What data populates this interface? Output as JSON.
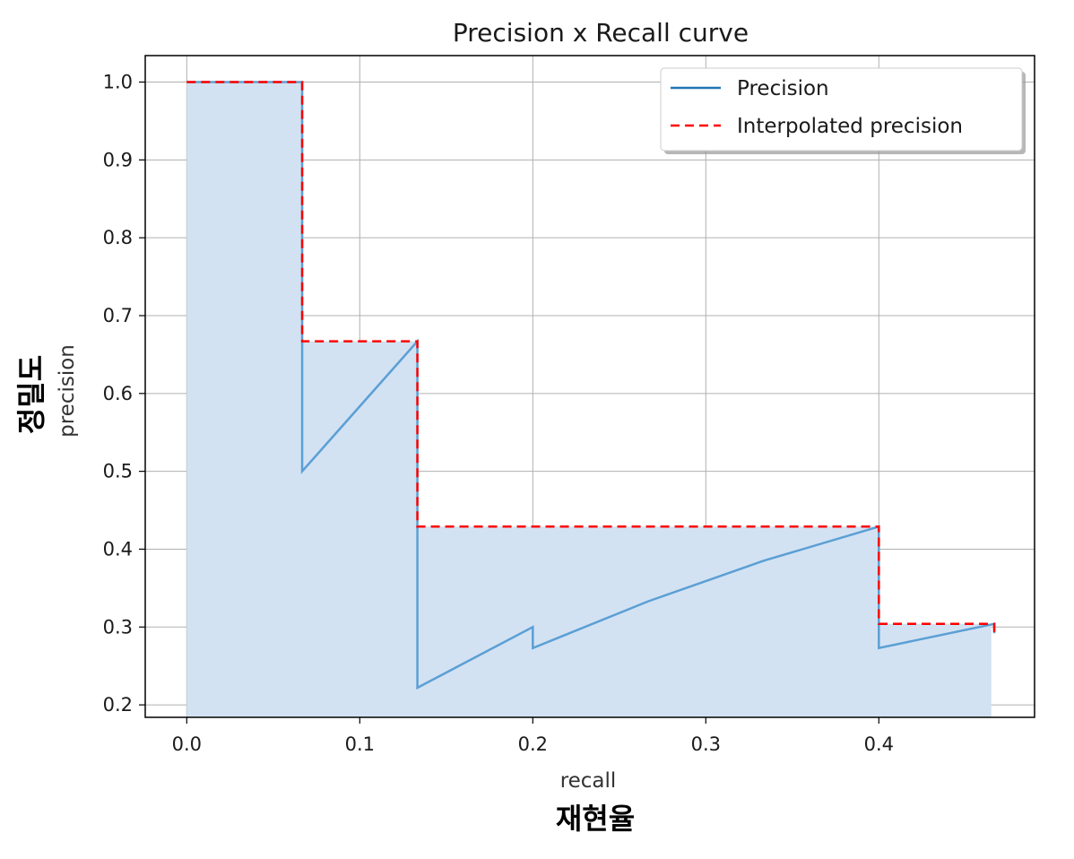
{
  "chart_data": {
    "type": "line",
    "title": "Precision x Recall curve",
    "xlabel": "recall",
    "ylabel": "precision",
    "xlabel_ko": "재현율",
    "ylabel_ko": "정밀도",
    "xlim": [
      -0.024,
      0.49
    ],
    "ylim": [
      0.184,
      1.034
    ],
    "xticks": [
      0.0,
      0.1,
      0.2,
      0.3,
      0.4
    ],
    "xtick_labels": [
      "0.0",
      "0.1",
      "0.2",
      "0.3",
      "0.4"
    ],
    "yticks": [
      0.2,
      0.3,
      0.4,
      0.5,
      0.6,
      0.7,
      0.8,
      0.9,
      1.0
    ],
    "ytick_labels": [
      "0.2",
      "0.3",
      "0.4",
      "0.5",
      "0.6",
      "0.7",
      "0.8",
      "0.9",
      "1.0"
    ],
    "grid": true,
    "legend_position": "top-right",
    "colors": {
      "precision": "#5b9fd4",
      "interpolated": "#ff0000",
      "fill": "#d2e2f3",
      "grid": "#b0b0b0"
    },
    "series": [
      {
        "name": "Precision",
        "style": "solid",
        "x": [
          0.0,
          0.0667,
          0.0667,
          0.1333,
          0.1333,
          0.2,
          0.2,
          0.2667,
          0.3333,
          0.4,
          0.4,
          0.4667,
          0.4667
        ],
        "y": [
          1.0,
          1.0,
          0.5,
          0.667,
          0.222,
          0.3,
          0.273,
          0.333,
          0.385,
          0.429,
          0.273,
          0.304,
          0.292
        ]
      },
      {
        "name": "Interpolated precision",
        "style": "dashed",
        "x": [
          0.0,
          0.0667,
          0.0667,
          0.1333,
          0.1333,
          0.4,
          0.4,
          0.4667,
          0.4667
        ],
        "y": [
          1.0,
          1.0,
          0.667,
          0.667,
          0.429,
          0.429,
          0.304,
          0.304,
          0.292
        ]
      }
    ],
    "fill_area": {
      "x": [
        0.0,
        0.0667,
        0.0667,
        0.1333,
        0.1333,
        0.4,
        0.4,
        0.465
      ],
      "y": [
        1.0,
        1.0,
        0.667,
        0.667,
        0.429,
        0.429,
        0.304,
        0.304
      ]
    }
  }
}
